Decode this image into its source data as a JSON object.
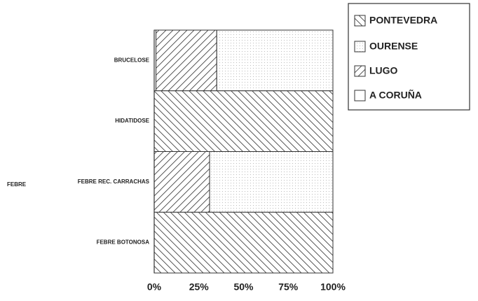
{
  "chart_data": {
    "type": "stacked_barh",
    "categories": [
      "BRUCELOSE",
      "HIDATIDOSE",
      "FEBRE REC. CARRACHAS",
      "FEBRE BOTONOSA"
    ],
    "group_label": "FEBRE",
    "series": [
      {
        "name": "PONTEVEDRA",
        "color": "#333333",
        "pattern": "backslash",
        "values": [
          0,
          100,
          0,
          100
        ]
      },
      {
        "name": "OURENSE",
        "color": "#333333",
        "pattern": "dots",
        "values": [
          65,
          0,
          69,
          0
        ]
      },
      {
        "name": "LUGO",
        "color": "#333333",
        "pattern": "slash",
        "values": [
          34,
          0,
          31,
          0
        ]
      },
      {
        "name": "A CORUÑA",
        "color": "#333333",
        "pattern": "none",
        "values": [
          1,
          0,
          0,
          0
        ]
      }
    ],
    "stack_order": [
      3,
      2,
      1,
      0
    ],
    "xlim": [
      0,
      100
    ],
    "xticks": [
      {
        "value": 0,
        "label": "0%"
      },
      {
        "value": 25,
        "label": "25%"
      },
      {
        "value": 50,
        "label": "50%"
      },
      {
        "value": 75,
        "label": "75%"
      },
      {
        "value": 100,
        "label": "100%"
      }
    ],
    "legend": "upper right"
  }
}
